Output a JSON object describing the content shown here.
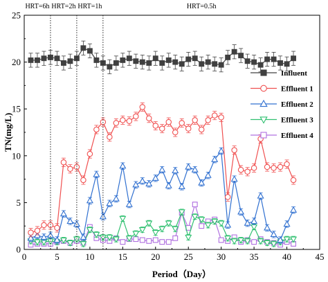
{
  "chart_data": {
    "type": "line",
    "xlabel": "Period（Day）",
    "ylabel": "TN(mg/L)",
    "xlim": [
      0,
      45
    ],
    "ylim": [
      0,
      25
    ],
    "x_ticks": [
      "0",
      "5",
      "10",
      "15",
      "20",
      "25",
      "30",
      "35",
      "40",
      "45"
    ],
    "y_ticks": [
      "0",
      "5",
      "10",
      "15",
      "20",
      "25"
    ],
    "hrt_labels": [
      {
        "text": "HRT=6h",
        "x": 2
      },
      {
        "text": "HRT=2h",
        "x": 6
      },
      {
        "text": "HRT=1h",
        "x": 10
      },
      {
        "text": "HRT=0.5h",
        "x": 27
      }
    ],
    "dividers_x": [
      4,
      8,
      12
    ],
    "x": [
      1,
      2,
      3,
      4,
      5,
      6,
      7,
      8,
      9,
      10,
      11,
      12,
      13,
      14,
      15,
      16,
      17,
      18,
      19,
      20,
      21,
      22,
      23,
      24,
      25,
      26,
      27,
      28,
      29,
      30,
      31,
      32,
      33,
      34,
      35,
      36,
      37,
      38,
      39,
      40,
      41
    ],
    "series": [
      {
        "name": "Influent",
        "color": "#404040",
        "marker": "square",
        "filled": true,
        "error": 0.75,
        "values": [
          20.2,
          20.2,
          20.4,
          20.5,
          20.4,
          19.9,
          20.1,
          20.4,
          21.5,
          21.2,
          20.2,
          19.9,
          19.5,
          19.9,
          20.2,
          20.4,
          20.1,
          20.0,
          19.9,
          20.4,
          19.9,
          20.2,
          20.0,
          19.8,
          20.3,
          20.4,
          19.8,
          20.0,
          19.8,
          19.7,
          20.5,
          21.1,
          20.7,
          20.1,
          20.0,
          19.7,
          20.3,
          20.3,
          19.9,
          19.8,
          20.4
        ]
      },
      {
        "name": "Effluent 1",
        "color": "#f05050",
        "marker": "circle",
        "filled": false,
        "error": 0.45,
        "values": [
          1.8,
          2.0,
          2.6,
          2.6,
          2.3,
          9.3,
          8.6,
          8.8,
          7.4,
          10.2,
          12.8,
          13.6,
          12.0,
          13.5,
          13.8,
          13.7,
          14.2,
          15.2,
          14.0,
          13.2,
          12.9,
          13.6,
          12.5,
          13.5,
          12.9,
          13.8,
          12.8,
          13.8,
          14.3,
          14.1,
          5.6,
          10.6,
          8.5,
          8.3,
          8.7,
          11.8,
          8.8,
          8.7,
          8.8,
          9.1,
          7.4
        ]
      },
      {
        "name": "Effluent 2",
        "color": "#3070d0",
        "marker": "triangle-up",
        "filled": false,
        "error": 0.35,
        "values": [
          1.2,
          1.5,
          1.3,
          1.5,
          1.0,
          3.8,
          3.0,
          2.7,
          1.3,
          5.2,
          8.0,
          3.5,
          4.9,
          5.4,
          8.9,
          4.8,
          6.9,
          7.3,
          7.0,
          7.6,
          8.5,
          6.8,
          8.4,
          6.7,
          8.8,
          8.5,
          7.1,
          7.9,
          9.6,
          10.5,
          2.6,
          7.5,
          4.0,
          2.8,
          3.0,
          5.7,
          2.3,
          1.6,
          1.0,
          2.7,
          4.2
        ]
      },
      {
        "name": "Effluent 3",
        "color": "#30c070",
        "marker": "triangle-down",
        "filled": false,
        "error": 0.3,
        "values": [
          0.9,
          0.8,
          0.8,
          0.9,
          0.8,
          1.0,
          0.7,
          1.1,
          0.6,
          2.1,
          1.6,
          1.3,
          1.3,
          1.1,
          3.3,
          1.2,
          1.7,
          2.1,
          2.8,
          1.8,
          2.2,
          2.8,
          2.2,
          4.0,
          1.3,
          3.5,
          3.2,
          2.6,
          3.0,
          2.8,
          1.2,
          0.9,
          1.0,
          0.9,
          2.4,
          0.9,
          0.7,
          0.6,
          0.8,
          1.1,
          1.1
        ]
      },
      {
        "name": "Effluent 4",
        "color": "#b070e0",
        "marker": "square",
        "filled": false,
        "error": 0.25,
        "values": [
          0.5,
          0.6,
          0.6,
          0.6,
          0.8,
          0.9,
          0.7,
          0.9,
          0.7,
          2.4,
          1.2,
          1.0,
          0.9,
          1.2,
          0.8,
          1.1,
          1.1,
          1.0,
          0.9,
          1.0,
          0.8,
          0.8,
          1.2,
          3.9,
          2.3,
          4.8,
          2.5,
          3.0,
          3.2,
          1.0,
          0.9,
          1.3,
          0.8,
          1.0,
          0.8,
          1.1,
          0.8,
          0.7,
          0.5,
          0.8,
          0.6
        ]
      }
    ],
    "legend_position": "right",
    "grid": false
  }
}
